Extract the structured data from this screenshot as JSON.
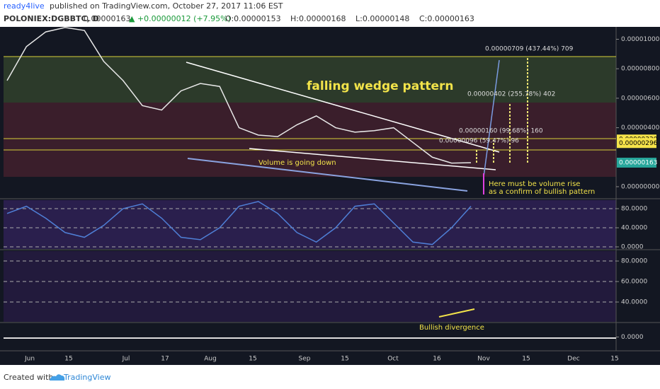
{
  "header": {
    "publisher": "ready4live",
    "published": "published on TradingView.com, October 27, 2017 11:06 EST",
    "symbol": "POLONIEX:DGBBTC, D",
    "last": "0.00000163",
    "change": "▲ +0.00000012 (+7.95%)",
    "open": "O:0.00000153",
    "high": "H:0.00000168",
    "low": "L:0.00000148",
    "close": "C:0.00000163"
  },
  "chart_data": [
    {
      "type": "line",
      "color": "#e8e8e8",
      "values": [
        7.2e-06,
        9.5e-06,
        1.05e-05,
        1.08e-05,
        1.06e-05,
        8.5e-06,
        7.2e-06,
        5.5e-06,
        5.2e-06,
        6.5e-06,
        7e-06,
        6.8e-06,
        4e-06,
        3.5e-06,
        3.4e-06,
        4.2e-06,
        4.8e-06,
        4e-06,
        3.7e-06,
        3.8e-06,
        4e-06,
        3e-06,
        2e-06,
        1.6e-06,
        1.63e-06
      ],
      "ylim": [
        -7.7e-07,
        1.084e-05
      ],
      "yticks": [
        {
          "value": 1e-05,
          "label": "0.00001000"
        },
        {
          "value": 8e-06,
          "label": "0.00000800"
        },
        {
          "value": 6e-06,
          "label": "0.00000600"
        },
        {
          "value": 4e-06,
          "label": "0.00000400"
        },
        {
          "value": 0,
          "label": "0.00000000"
        }
      ],
      "price_labels": [
        {
          "value": 3.2e-06,
          "label": "0.00000320"
        },
        {
          "value": 2.96e-06,
          "label": "0.00000296"
        },
        {
          "value": 1.63e-06,
          "label": "0.00000163"
        }
      ],
      "time_labels": [
        "Jun",
        "15",
        "Jul",
        "17",
        "Aug",
        "15",
        "Sep",
        "15",
        "Oct",
        "16",
        "Nov",
        "15",
        "Dec",
        "15"
      ],
      "annotations": [
        "falling wedge pattern",
        "Volume is going down",
        "Here must be volume rise",
        "as a confirm of bullish pattern",
        "Bullish divergence",
        "0.00000709 (437.44%) 709",
        "0.00000402 (255.78%) 402",
        "0.00000160 (99.68%) 160",
        "0.00000096 (59.47%) 96"
      ]
    },
    {
      "type": "line",
      "color": "#4f7fd6",
      "values": [
        70,
        85,
        60,
        30,
        20,
        45,
        80,
        90,
        60,
        20,
        15,
        40,
        85,
        95,
        70,
        30,
        10,
        40,
        85,
        90,
        50,
        10,
        5,
        40,
        85
      ],
      "ylim": [
        -4.4,
        97.8
      ],
      "yticks": [
        {
          "value": 80,
          "label": "80.0000"
        },
        {
          "value": 40,
          "label": "40.0000"
        },
        {
          "value": 0,
          "label": "0.0000"
        }
      ]
    },
    {
      "type": "axis",
      "ylim": [
        20.7,
        89.7
      ],
      "yticks": [
        {
          "value": 80,
          "label": "80.0000"
        },
        {
          "value": 60,
          "label": "60.0000"
        },
        {
          "value": 40,
          "label": "40.0000"
        }
      ]
    },
    {
      "type": "axis",
      "ylim": [
        -10,
        10
      ],
      "yticks": [
        {
          "value": 0,
          "label": "0.0000"
        }
      ]
    }
  ],
  "footer": {
    "created": "Created with",
    "brand": "TradingView"
  }
}
